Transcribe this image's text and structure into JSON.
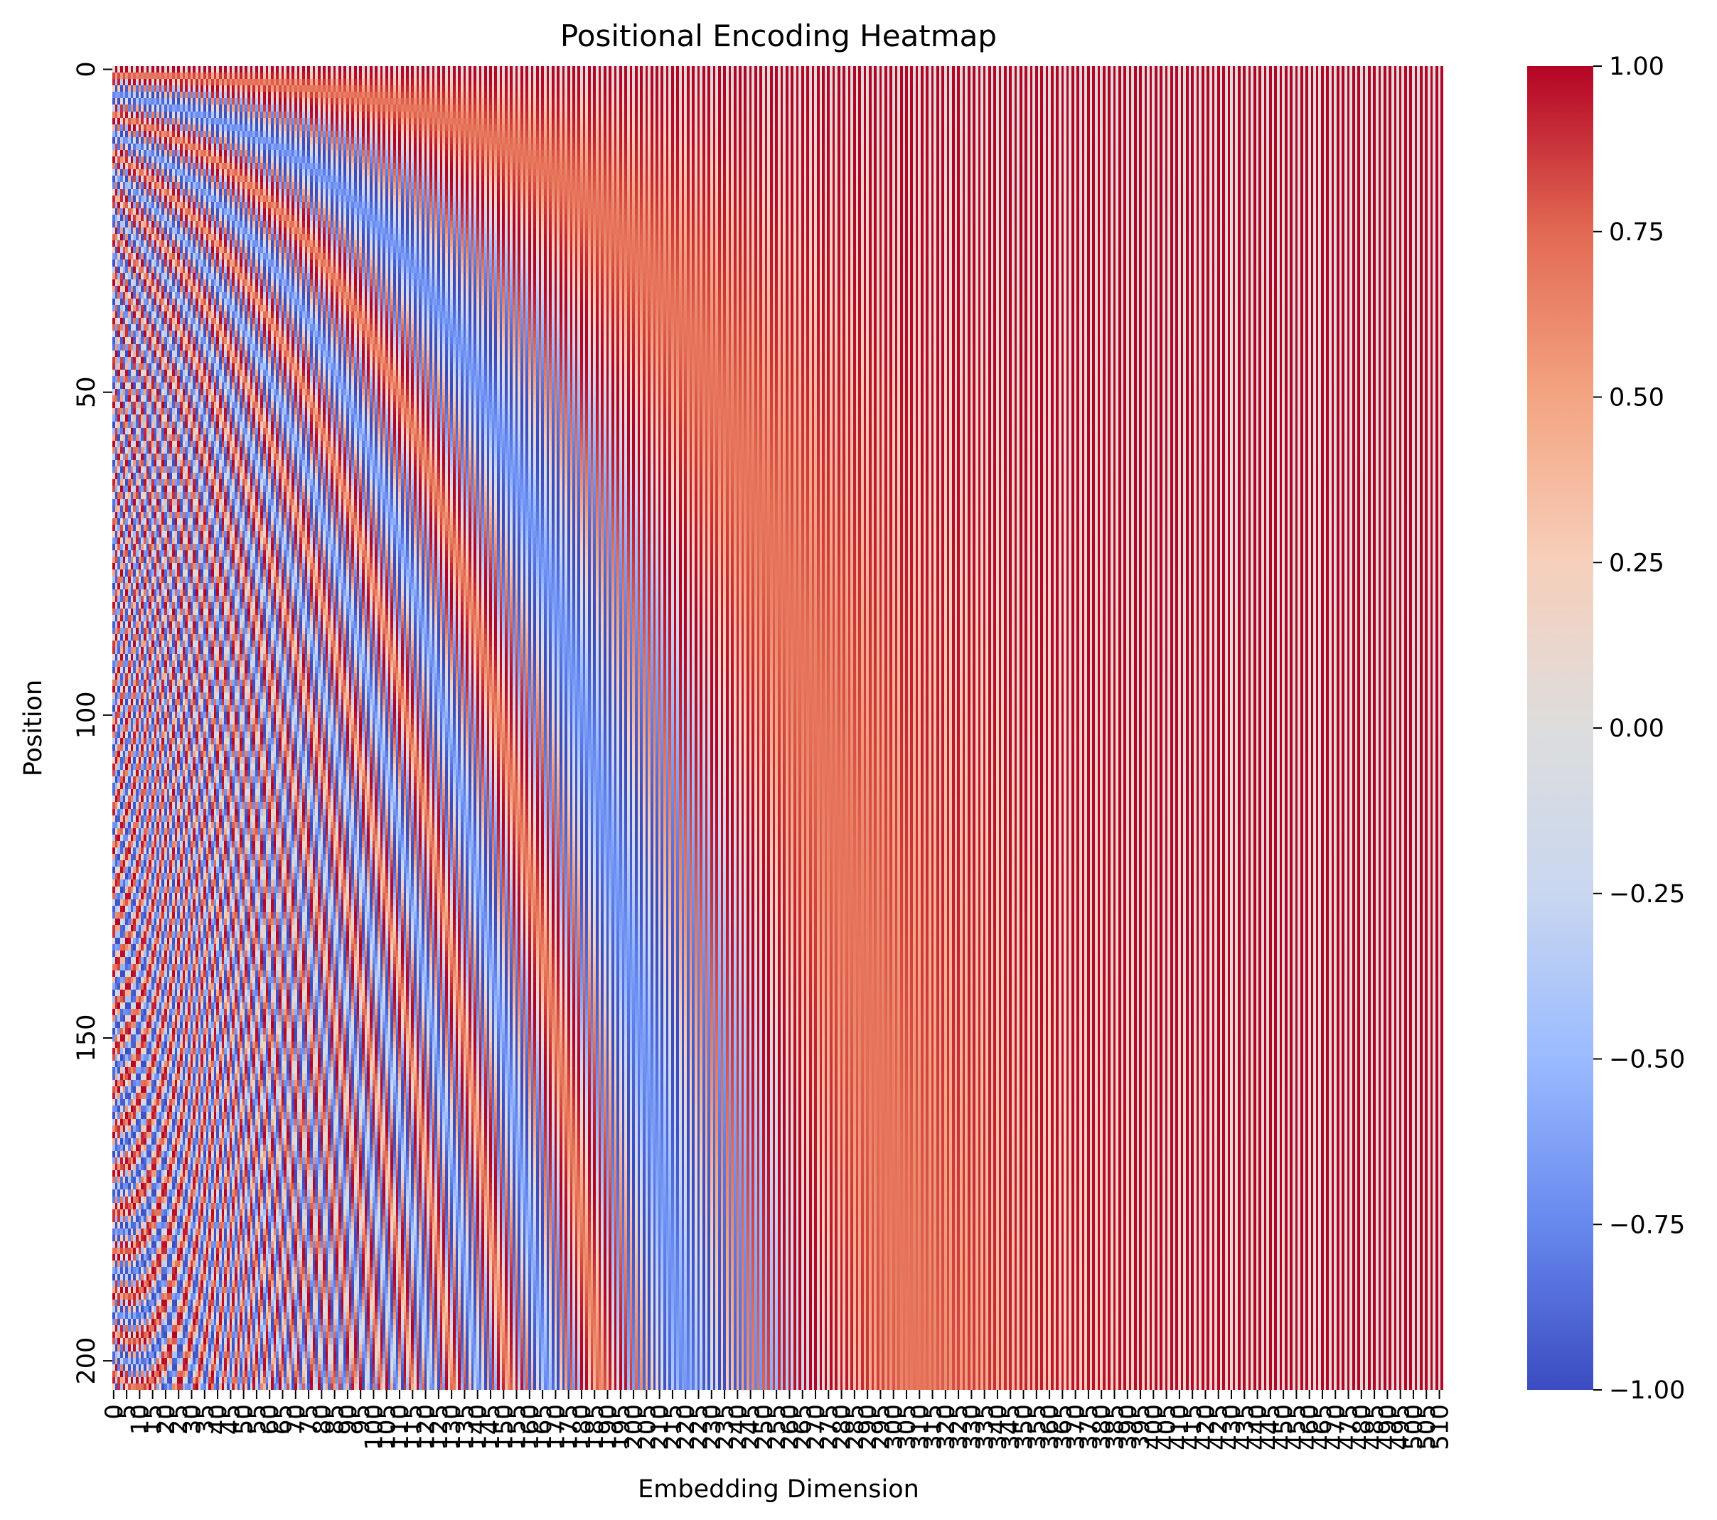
{
  "chart_data": {
    "type": "heatmap",
    "title": "Positional Encoding Heatmap",
    "xlabel": "Embedding Dimension",
    "ylabel": "Position",
    "n_positions": 205,
    "n_dimensions": 512,
    "value_formula": "even dims: sin(pos / 10000^(d/512)); odd dims: cos(pos / 10000^((d-1)/512))",
    "x_tick_values": [
      0,
      5,
      10,
      15,
      20,
      25,
      30,
      35,
      40,
      45,
      50,
      55,
      60,
      65,
      70,
      75,
      80,
      85,
      90,
      95,
      100,
      105,
      110,
      115,
      120,
      125,
      130,
      135,
      140,
      145,
      150,
      155,
      160,
      165,
      170,
      175,
      180,
      185,
      190,
      195,
      200,
      205,
      210,
      215,
      220,
      225,
      230,
      235,
      240,
      245,
      250,
      255,
      260,
      265,
      270,
      275,
      280,
      285,
      290,
      295,
      300,
      305,
      310,
      315,
      320,
      325,
      330,
      335,
      340,
      345,
      350,
      355,
      360,
      365,
      370,
      375,
      380,
      385,
      390,
      395,
      400,
      405,
      410,
      415,
      420,
      425,
      430,
      435,
      440,
      445,
      450,
      455,
      460,
      465,
      470,
      475,
      480,
      485,
      490,
      495,
      500,
      505,
      510
    ],
    "x_tick_labels": [
      "0",
      "5",
      "10",
      "15",
      "20",
      "25",
      "30",
      "35",
      "40",
      "45",
      "50",
      "55",
      "60",
      "65",
      "70",
      "75",
      "80",
      "85",
      "90",
      "95",
      "100",
      "105",
      "110",
      "115",
      "120",
      "125",
      "130",
      "135",
      "140",
      "145",
      "150",
      "155",
      "160",
      "165",
      "170",
      "175",
      "180",
      "185",
      "190",
      "195",
      "200",
      "205",
      "210",
      "215",
      "220",
      "225",
      "230",
      "235",
      "240",
      "245",
      "250",
      "255",
      "260",
      "265",
      "270",
      "275",
      "280",
      "285",
      "290",
      "295",
      "300",
      "305",
      "310",
      "315",
      "320",
      "325",
      "330",
      "335",
      "340",
      "345",
      "350",
      "355",
      "360",
      "365",
      "370",
      "375",
      "380",
      "385",
      "390",
      "395",
      "400",
      "405",
      "410",
      "415",
      "420",
      "425",
      "430",
      "435",
      "440",
      "445",
      "450",
      "455",
      "460",
      "465",
      "470",
      "475",
      "480",
      "485",
      "490",
      "495",
      "500",
      "505",
      "510"
    ],
    "y_tick_values": [
      0,
      50,
      100,
      150,
      200
    ],
    "y_tick_labels": [
      "0",
      "50",
      "100",
      "150",
      "200"
    ],
    "colorbar": {
      "vmin": -1.0,
      "vmax": 1.0,
      "tick_values": [
        1.0,
        0.75,
        0.5,
        0.25,
        0.0,
        -0.25,
        -0.5,
        -0.75,
        -1.0
      ],
      "tick_labels": [
        "1.00",
        "0.75",
        "0.50",
        "0.25",
        "0.00",
        "−0.25",
        "−0.50",
        "−0.75",
        "−1.00"
      ]
    },
    "colormap": "coolwarm",
    "colormap_stops": [
      "#3b4cc0",
      "#6788ee",
      "#9abbff",
      "#c9d7f0",
      "#dddddd",
      "#f6cfbb",
      "#f4a582",
      "#e26952",
      "#b40426"
    ],
    "grid": false,
    "legend": "colorbar-right"
  }
}
